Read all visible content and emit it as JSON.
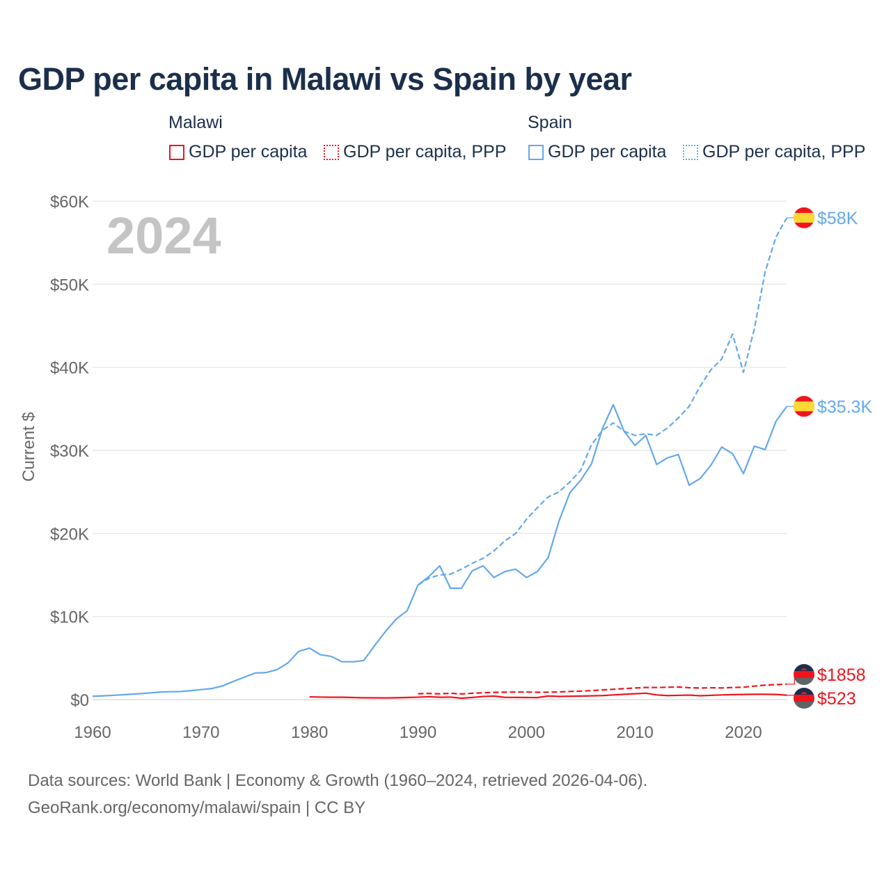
{
  "chart_data": {
    "type": "line",
    "title": "GDP per capita in Malawi vs Spain by year",
    "ylabel": "Current $",
    "xlabel": "",
    "year_watermark": "2024",
    "xlim": [
      1960,
      2024
    ],
    "ylim": [
      0,
      60000
    ],
    "x_ticks": [
      1960,
      1970,
      1980,
      1990,
      2000,
      2010,
      2020
    ],
    "x_tick_labels": [
      "1960",
      "1970",
      "1980",
      "1990",
      "2000",
      "2010",
      "2020"
    ],
    "y_ticks": [
      0,
      10000,
      20000,
      30000,
      40000,
      50000,
      60000
    ],
    "y_tick_labels": [
      "$0",
      "$10K",
      "$20K",
      "$30K",
      "$40K",
      "$50K",
      "$60K"
    ],
    "grid": true,
    "legend": {
      "placement": "top",
      "groups": [
        {
          "name": "Malawi",
          "items": [
            "GDP per capita",
            "GDP per capita, PPP"
          ]
        },
        {
          "name": "Spain",
          "items": [
            "GDP per capita",
            "GDP per capita, PPP"
          ]
        }
      ]
    },
    "series": [
      {
        "country": "Spain",
        "name": "GDP per capita",
        "color": "#64a8ec",
        "style": "solid",
        "end_label": "$35.3K",
        "flag": "spain",
        "start_year": 1960,
        "values": [
          400,
          450,
          520,
          600,
          680,
          770,
          880,
          950,
          960,
          1070,
          1200,
          1330,
          1650,
          2200,
          2700,
          3200,
          3250,
          3600,
          4400,
          5800,
          6200,
          5400,
          5200,
          4550,
          4550,
          4700,
          6500,
          8200,
          9700,
          10700,
          13800,
          14800,
          16100,
          13400,
          13400,
          15500,
          16100,
          14700,
          15400,
          15700,
          14700,
          15400,
          17100,
          21500,
          24900,
          26400,
          28400,
          32600,
          35500,
          32300,
          30600,
          31800,
          28300,
          29100,
          29500,
          25800,
          26600,
          28200,
          30400,
          29600,
          27200,
          30500,
          30100,
          33500,
          35300
        ]
      },
      {
        "country": "Spain",
        "name": "GDP per capita, PPP",
        "color": "#64a8ec",
        "style": "dashed",
        "end_label": "$58K",
        "flag": "spain",
        "start_year": 1990,
        "values": [
          13800,
          14600,
          15000,
          15100,
          15700,
          16400,
          17000,
          17900,
          19100,
          20000,
          21700,
          23100,
          24400,
          25000,
          26200,
          27600,
          30700,
          32400,
          33300,
          32300,
          31800,
          32000,
          31800,
          32700,
          33900,
          35300,
          37700,
          39700,
          41000,
          44000,
          39400,
          44600,
          51500,
          55700,
          58000
        ]
      },
      {
        "country": "Malawi",
        "name": "GDP per capita, PPP",
        "color": "#f0141e",
        "style": "dashed",
        "end_label": "$1858",
        "flag": "malawi",
        "start_year": 1990,
        "values": [
          700,
          740,
          690,
          760,
          680,
          760,
          820,
          870,
          890,
          900,
          910,
          880,
          890,
          920,
          980,
          1020,
          1080,
          1160,
          1240,
          1320,
          1390,
          1460,
          1450,
          1490,
          1510,
          1430,
          1390,
          1420,
          1400,
          1450,
          1490,
          1620,
          1740,
          1800,
          1858
        ]
      },
      {
        "country": "Malawi",
        "name": "GDP per capita",
        "color": "#f0141e",
        "style": "solid",
        "end_label": "$523",
        "flag": "malawi",
        "start_year": 1980,
        "values": [
          330,
          300,
          280,
          280,
          250,
          220,
          210,
          200,
          220,
          250,
          290,
          340,
          280,
          300,
          170,
          250,
          370,
          420,
          270,
          260,
          250,
          240,
          430,
          380,
          400,
          420,
          450,
          480,
          560,
          640,
          700,
          770,
          560,
          480,
          510,
          540,
          460,
          510,
          560,
          600,
          620,
          640,
          640,
          620,
          523
        ]
      }
    ],
    "colors": {
      "malawi": "#f0141e",
      "spain": "#64a8ec",
      "title": "#1b2f4b"
    }
  },
  "footer": {
    "line1": "Data sources: World Bank | Economy & Growth (1960–2024, retrieved 2026-04-06).",
    "line2": "GeoRank.org/economy/malawi/spain | CC BY"
  }
}
